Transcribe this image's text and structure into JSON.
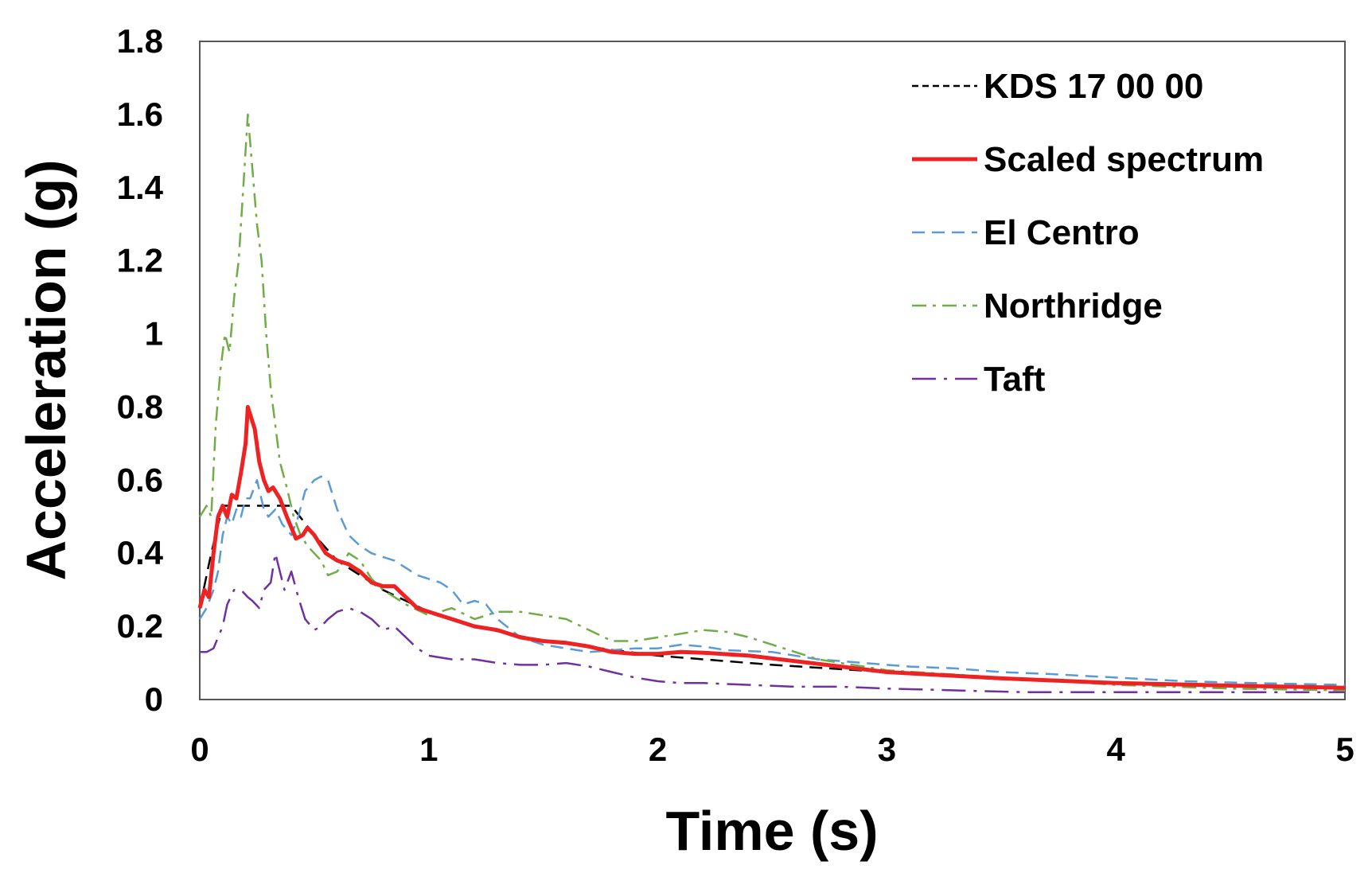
{
  "chart_data": {
    "type": "line",
    "title": "",
    "xlabel": "Time (s)",
    "ylabel": "Acceleration (g)",
    "xlim": [
      0,
      5
    ],
    "ylim": [
      0,
      1.8
    ],
    "x_ticks": [
      "0",
      "1",
      "2",
      "3",
      "4",
      "5"
    ],
    "y_ticks": [
      "0",
      "0.2",
      "0.4",
      "0.6",
      "0.8",
      "1",
      "1.2",
      "1.4",
      "1.6",
      "1.8"
    ],
    "grid": false,
    "legend_position": "top-right",
    "series": [
      {
        "name": "KDS 17 00 00",
        "color": "#000000",
        "dash": "dashed",
        "points": [
          [
            0,
            0.25
          ],
          [
            0.05,
            0.4
          ],
          [
            0.1,
            0.53
          ],
          [
            0.4,
            0.53
          ],
          [
            0.5,
            0.45
          ],
          [
            0.6,
            0.38
          ],
          [
            0.8,
            0.3
          ],
          [
            1.0,
            0.24
          ],
          [
            1.2,
            0.2
          ],
          [
            1.5,
            0.16
          ],
          [
            2.0,
            0.12
          ],
          [
            2.5,
            0.095
          ],
          [
            3.0,
            0.075
          ],
          [
            3.5,
            0.06
          ],
          [
            4.0,
            0.045
          ],
          [
            4.5,
            0.038
          ],
          [
            5.0,
            0.032
          ]
        ]
      },
      {
        "name": "Scaled spectrum",
        "color": "#ee2222",
        "dash": "solid",
        "points": [
          [
            0,
            0.25
          ],
          [
            0.02,
            0.3
          ],
          [
            0.04,
            0.28
          ],
          [
            0.06,
            0.4
          ],
          [
            0.08,
            0.5
          ],
          [
            0.1,
            0.53
          ],
          [
            0.12,
            0.5
          ],
          [
            0.14,
            0.56
          ],
          [
            0.16,
            0.55
          ],
          [
            0.18,
            0.62
          ],
          [
            0.2,
            0.7
          ],
          [
            0.21,
            0.8
          ],
          [
            0.22,
            0.78
          ],
          [
            0.24,
            0.74
          ],
          [
            0.26,
            0.65
          ],
          [
            0.28,
            0.6
          ],
          [
            0.3,
            0.57
          ],
          [
            0.32,
            0.58
          ],
          [
            0.35,
            0.55
          ],
          [
            0.38,
            0.5
          ],
          [
            0.42,
            0.44
          ],
          [
            0.45,
            0.45
          ],
          [
            0.47,
            0.47
          ],
          [
            0.5,
            0.45
          ],
          [
            0.55,
            0.4
          ],
          [
            0.6,
            0.38
          ],
          [
            0.65,
            0.37
          ],
          [
            0.7,
            0.35
          ],
          [
            0.75,
            0.32
          ],
          [
            0.8,
            0.31
          ],
          [
            0.85,
            0.31
          ],
          [
            0.9,
            0.28
          ],
          [
            0.95,
            0.25
          ],
          [
            1.0,
            0.24
          ],
          [
            1.1,
            0.22
          ],
          [
            1.2,
            0.2
          ],
          [
            1.3,
            0.19
          ],
          [
            1.4,
            0.17
          ],
          [
            1.5,
            0.16
          ],
          [
            1.6,
            0.155
          ],
          [
            1.7,
            0.145
          ],
          [
            1.8,
            0.13
          ],
          [
            1.9,
            0.125
          ],
          [
            2.0,
            0.125
          ],
          [
            2.1,
            0.13
          ],
          [
            2.2,
            0.128
          ],
          [
            2.4,
            0.12
          ],
          [
            2.6,
            0.105
          ],
          [
            2.8,
            0.09
          ],
          [
            3.0,
            0.075
          ],
          [
            3.5,
            0.058
          ],
          [
            4.0,
            0.045
          ],
          [
            4.5,
            0.038
          ],
          [
            5.0,
            0.032
          ]
        ]
      },
      {
        "name": "El Centro",
        "color": "#5b9bd5",
        "dash": "dashed",
        "points": [
          [
            0,
            0.22
          ],
          [
            0.03,
            0.25
          ],
          [
            0.06,
            0.3
          ],
          [
            0.08,
            0.35
          ],
          [
            0.1,
            0.45
          ],
          [
            0.12,
            0.5
          ],
          [
            0.14,
            0.48
          ],
          [
            0.16,
            0.52
          ],
          [
            0.18,
            0.5
          ],
          [
            0.2,
            0.55
          ],
          [
            0.22,
            0.55
          ],
          [
            0.25,
            0.6
          ],
          [
            0.28,
            0.52
          ],
          [
            0.3,
            0.5
          ],
          [
            0.33,
            0.52
          ],
          [
            0.36,
            0.48
          ],
          [
            0.4,
            0.45
          ],
          [
            0.43,
            0.5
          ],
          [
            0.46,
            0.57
          ],
          [
            0.5,
            0.6
          ],
          [
            0.53,
            0.61
          ],
          [
            0.56,
            0.6
          ],
          [
            0.6,
            0.52
          ],
          [
            0.65,
            0.45
          ],
          [
            0.7,
            0.42
          ],
          [
            0.75,
            0.4
          ],
          [
            0.8,
            0.39
          ],
          [
            0.85,
            0.38
          ],
          [
            0.9,
            0.36
          ],
          [
            0.95,
            0.34
          ],
          [
            1.0,
            0.33
          ],
          [
            1.05,
            0.32
          ],
          [
            1.1,
            0.3
          ],
          [
            1.15,
            0.26
          ],
          [
            1.2,
            0.27
          ],
          [
            1.25,
            0.26
          ],
          [
            1.3,
            0.22
          ],
          [
            1.4,
            0.17
          ],
          [
            1.5,
            0.15
          ],
          [
            1.6,
            0.14
          ],
          [
            1.7,
            0.13
          ],
          [
            1.8,
            0.135
          ],
          [
            1.9,
            0.14
          ],
          [
            2.0,
            0.14
          ],
          [
            2.1,
            0.15
          ],
          [
            2.2,
            0.145
          ],
          [
            2.3,
            0.135
          ],
          [
            2.5,
            0.13
          ],
          [
            2.7,
            0.11
          ],
          [
            2.9,
            0.1
          ],
          [
            3.1,
            0.09
          ],
          [
            3.3,
            0.085
          ],
          [
            3.5,
            0.075
          ],
          [
            3.7,
            0.07
          ],
          [
            4.0,
            0.06
          ],
          [
            4.3,
            0.05
          ],
          [
            4.6,
            0.045
          ],
          [
            5.0,
            0.04
          ]
        ]
      },
      {
        "name": "Northridge",
        "color": "#70ad47",
        "dash": "dashdot",
        "points": [
          [
            0,
            0.5
          ],
          [
            0.03,
            0.53
          ],
          [
            0.05,
            0.5
          ],
          [
            0.07,
            0.75
          ],
          [
            0.09,
            0.9
          ],
          [
            0.11,
            1.0
          ],
          [
            0.13,
            0.95
          ],
          [
            0.15,
            1.1
          ],
          [
            0.17,
            1.2
          ],
          [
            0.19,
            1.4
          ],
          [
            0.21,
            1.6
          ],
          [
            0.23,
            1.45
          ],
          [
            0.25,
            1.3
          ],
          [
            0.27,
            1.2
          ],
          [
            0.29,
            1.0
          ],
          [
            0.31,
            0.85
          ],
          [
            0.33,
            0.75
          ],
          [
            0.35,
            0.65
          ],
          [
            0.38,
            0.58
          ],
          [
            0.41,
            0.5
          ],
          [
            0.44,
            0.45
          ],
          [
            0.47,
            0.42
          ],
          [
            0.5,
            0.4
          ],
          [
            0.53,
            0.38
          ],
          [
            0.56,
            0.34
          ],
          [
            0.6,
            0.35
          ],
          [
            0.65,
            0.4
          ],
          [
            0.7,
            0.38
          ],
          [
            0.75,
            0.33
          ],
          [
            0.8,
            0.3
          ],
          [
            0.9,
            0.26
          ],
          [
            1.0,
            0.23
          ],
          [
            1.1,
            0.25
          ],
          [
            1.2,
            0.22
          ],
          [
            1.3,
            0.24
          ],
          [
            1.4,
            0.24
          ],
          [
            1.5,
            0.23
          ],
          [
            1.6,
            0.22
          ],
          [
            1.7,
            0.19
          ],
          [
            1.8,
            0.16
          ],
          [
            1.9,
            0.16
          ],
          [
            2.0,
            0.17
          ],
          [
            2.1,
            0.18
          ],
          [
            2.2,
            0.19
          ],
          [
            2.3,
            0.185
          ],
          [
            2.4,
            0.17
          ],
          [
            2.5,
            0.15
          ],
          [
            2.6,
            0.13
          ],
          [
            2.7,
            0.11
          ],
          [
            2.8,
            0.1
          ],
          [
            3.0,
            0.08
          ],
          [
            3.5,
            0.06
          ],
          [
            4.0,
            0.04
          ],
          [
            4.5,
            0.03
          ],
          [
            5.0,
            0.025
          ]
        ]
      },
      {
        "name": "Taft",
        "color": "#7030a0",
        "dash": "longdashdot",
        "points": [
          [
            0,
            0.13
          ],
          [
            0.03,
            0.13
          ],
          [
            0.06,
            0.14
          ],
          [
            0.08,
            0.17
          ],
          [
            0.1,
            0.2
          ],
          [
            0.12,
            0.26
          ],
          [
            0.15,
            0.3
          ],
          [
            0.18,
            0.3
          ],
          [
            0.21,
            0.28
          ],
          [
            0.23,
            0.27
          ],
          [
            0.26,
            0.25
          ],
          [
            0.28,
            0.3
          ],
          [
            0.31,
            0.32
          ],
          [
            0.33,
            0.4
          ],
          [
            0.35,
            0.35
          ],
          [
            0.37,
            0.3
          ],
          [
            0.4,
            0.35
          ],
          [
            0.43,
            0.28
          ],
          [
            0.46,
            0.22
          ],
          [
            0.5,
            0.19
          ],
          [
            0.53,
            0.2
          ],
          [
            0.56,
            0.22
          ],
          [
            0.6,
            0.24
          ],
          [
            0.65,
            0.25
          ],
          [
            0.7,
            0.24
          ],
          [
            0.75,
            0.22
          ],
          [
            0.8,
            0.19
          ],
          [
            0.85,
            0.2
          ],
          [
            0.9,
            0.17
          ],
          [
            0.95,
            0.14
          ],
          [
            1.0,
            0.12
          ],
          [
            1.1,
            0.11
          ],
          [
            1.2,
            0.11
          ],
          [
            1.3,
            0.1
          ],
          [
            1.4,
            0.095
          ],
          [
            1.5,
            0.095
          ],
          [
            1.6,
            0.1
          ],
          [
            1.7,
            0.09
          ],
          [
            1.8,
            0.075
          ],
          [
            1.9,
            0.06
          ],
          [
            2.0,
            0.05
          ],
          [
            2.1,
            0.045
          ],
          [
            2.2,
            0.045
          ],
          [
            2.4,
            0.04
          ],
          [
            2.6,
            0.035
          ],
          [
            2.8,
            0.035
          ],
          [
            3.0,
            0.03
          ],
          [
            3.3,
            0.025
          ],
          [
            3.6,
            0.02
          ],
          [
            4.0,
            0.02
          ],
          [
            4.5,
            0.02
          ],
          [
            5.0,
            0.02
          ]
        ]
      }
    ]
  }
}
